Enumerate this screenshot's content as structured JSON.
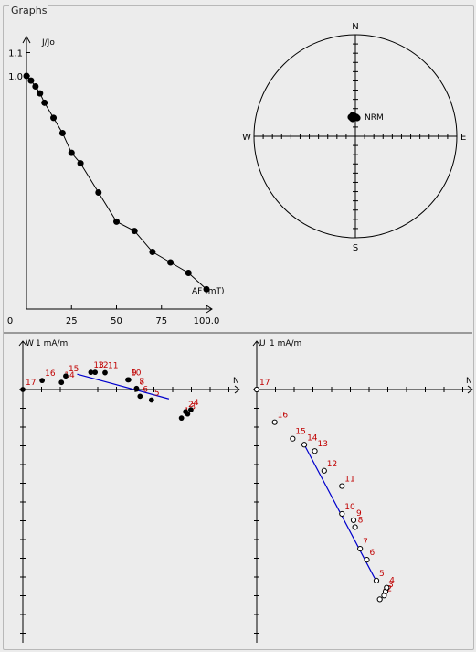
{
  "panel": {
    "title": "Graphs"
  },
  "colors": {
    "point": "#000000",
    "label": "#c00000",
    "fit": "#0000cc",
    "divider": "#9a9a9a"
  },
  "chart_data": [
    {
      "type": "line",
      "ylabel": "J/Jo",
      "xlabel": "AF (mT)",
      "xticks": [
        "0",
        "25",
        "50",
        "75",
        "100.0"
      ],
      "yticks": [
        "1.0",
        "1.1"
      ],
      "xlim": [
        0,
        100
      ],
      "ylim": [
        0,
        1.1
      ],
      "x": [
        0,
        2.5,
        5,
        7.5,
        10,
        15,
        20,
        25,
        30,
        40,
        50,
        60,
        70,
        80,
        90,
        100
      ],
      "values": [
        1.0,
        0.98,
        0.955,
        0.925,
        0.885,
        0.82,
        0.755,
        0.67,
        0.625,
        0.5,
        0.375,
        0.335,
        0.245,
        0.2,
        0.155,
        0.085
      ]
    },
    {
      "type": "scatter",
      "subtype": "equal-area stereonet",
      "directions": {
        "north": "N",
        "south": "S",
        "east": "E",
        "west": "W"
      },
      "annotation": "NRM",
      "points": [
        [
          -3,
          -5
        ],
        [
          -2,
          -4
        ],
        [
          -1,
          -4
        ],
        [
          0,
          -3
        ],
        [
          -4,
          -2
        ],
        [
          1,
          -3
        ],
        [
          -3,
          -1
        ],
        [
          -5,
          -3
        ],
        [
          2,
          -2
        ],
        [
          -1,
          -2
        ]
      ]
    },
    {
      "type": "scatter",
      "subtype": "orthogonal vector plot (horizontal projection)",
      "axis_up_label": "W",
      "axis_right_label": "N",
      "scale_label": "1 mA/m",
      "x": [
        0,
        1.03,
        2.06,
        2.29,
        3.63,
        3.86,
        4.39,
        5.61,
        5.65,
        6.07,
        6.07,
        6.26,
        6.87,
        8.47,
        8.69,
        8.8,
        8.97
      ],
      "y": [
        0,
        0.48,
        0.38,
        0.72,
        0.92,
        0.92,
        0.9,
        0.52,
        0.52,
        0.02,
        0.06,
        -0.36,
        -0.56,
        -1.52,
        -1.18,
        -1.3,
        -1.08
      ],
      "labels": [
        "17",
        "16",
        "14",
        "15",
        "13",
        "12",
        "11",
        "10",
        "9",
        "8",
        "7",
        "6",
        "5",
        "1",
        "2",
        "3",
        "4"
      ],
      "fit_line": [
        [
          2.9,
          0.82
        ],
        [
          7.8,
          -0.5
        ]
      ]
    },
    {
      "type": "scatter",
      "subtype": "orthogonal vector plot (vertical projection)",
      "axis_up_label": "U",
      "axis_right_label": "N",
      "scale_label": "1 mA/m",
      "x": [
        0,
        0.96,
        1.92,
        2.54,
        3.1,
        3.6,
        4.55,
        4.55,
        5.17,
        5.25,
        5.52,
        5.88,
        6.39,
        6.57,
        6.8,
        6.88,
        6.94
      ],
      "y": [
        0,
        -1.74,
        -2.62,
        -2.94,
        -3.28,
        -4.33,
        -5.15,
        -6.63,
        -6.97,
        -7.34,
        -8.49,
        -9.08,
        -10.19,
        -11.19,
        -10.99,
        -10.77,
        -10.57
      ],
      "labels": [
        "17",
        "16",
        "15",
        "14",
        "13",
        "12",
        "11",
        "10",
        "9",
        "8",
        "7",
        "6",
        "5",
        "1",
        "2",
        "3",
        "4"
      ],
      "fit_line": [
        [
          2.54,
          -2.94
        ],
        [
          6.3,
          -10.07
        ]
      ]
    }
  ]
}
